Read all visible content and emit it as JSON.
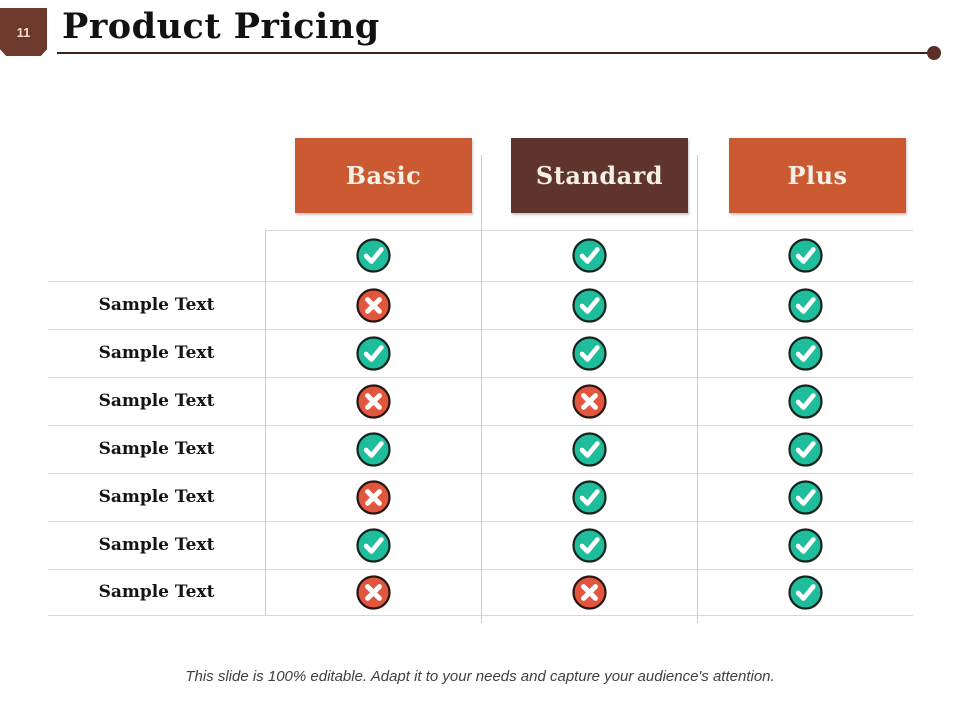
{
  "slide": {
    "number": "11",
    "title": "Product Pricing",
    "footer": "This slide is 100% editable. Adapt it to your needs and capture your audience's attention."
  },
  "table": {
    "columns": [
      {
        "label": "Basic",
        "color": "#cb5a32"
      },
      {
        "label": "Standard",
        "color": "#5f342c"
      },
      {
        "label": "Plus",
        "color": "#cb5a32"
      }
    ],
    "rows": [
      {
        "label": "",
        "cells": [
          "check",
          "check",
          "check"
        ]
      },
      {
        "label": "Sample Text",
        "cells": [
          "cross",
          "check",
          "check"
        ]
      },
      {
        "label": "Sample Text",
        "cells": [
          "check",
          "check",
          "check"
        ]
      },
      {
        "label": "Sample Text",
        "cells": [
          "cross",
          "cross",
          "check"
        ]
      },
      {
        "label": "Sample Text",
        "cells": [
          "check",
          "check",
          "check"
        ]
      },
      {
        "label": "Sample Text",
        "cells": [
          "cross",
          "check",
          "check"
        ]
      },
      {
        "label": "Sample Text",
        "cells": [
          "check",
          "check",
          "check"
        ]
      },
      {
        "label": "Sample Text",
        "cells": [
          "cross",
          "cross",
          "check"
        ]
      }
    ]
  },
  "icons": {
    "check": {
      "name": "check-icon",
      "fill": "#1ebd9c",
      "glyph_color": "#ffffff",
      "border": "#16231f"
    },
    "cross": {
      "name": "cross-icon",
      "fill": "#e25640",
      "glyph_color": "#ffffff",
      "border": "#2b1510"
    }
  },
  "colors": {
    "title_text": "#121212",
    "title_rule": "#3a241c",
    "badge_background": "#6d392d",
    "grid_line": "#d9d9d9",
    "footer_text": "#3f3f3f"
  }
}
